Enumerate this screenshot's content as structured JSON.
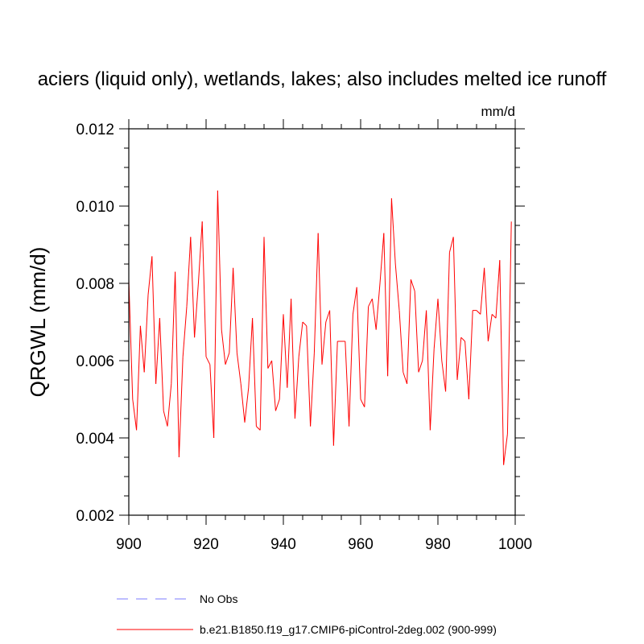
{
  "chart_data": {
    "type": "line",
    "title": "aciers (liquid only), wetlands, lakes; also includes melted ice runoff",
    "units": "mm/d",
    "ylabel": "QRGWL  (mm/d)",
    "xlabel": "",
    "xlim": [
      900,
      1000
    ],
    "ylim": [
      0.002,
      0.012
    ],
    "x_ticks": [
      900,
      920,
      940,
      960,
      980,
      1000
    ],
    "x_tick_labels": [
      "900",
      "920",
      "940",
      "960",
      "980",
      "1000"
    ],
    "y_ticks": [
      0.002,
      0.004,
      0.006,
      0.008,
      0.01,
      0.012
    ],
    "y_tick_labels": [
      "0.002",
      "0.004",
      "0.006",
      "0.008",
      "0.010",
      "0.012"
    ],
    "grid": false,
    "legend": [
      {
        "label": "No Obs",
        "color": "#7b7bff",
        "style": "dashed"
      },
      {
        "label": "b.e21.B1850.f19_g17.CMIP6-piControl-2deg.002 (900-999)",
        "color": "#ff0000",
        "style": "solid"
      }
    ],
    "series": [
      {
        "name": "b.e21.B1850.f19_g17.CMIP6-piControl-2deg.002 (900-999)",
        "color": "#ff0000",
        "x_start": 900,
        "values": [
          0.0081,
          0.005,
          0.0042,
          0.0069,
          0.0057,
          0.0077,
          0.0087,
          0.0054,
          0.0071,
          0.0047,
          0.0043,
          0.0054,
          0.0083,
          0.0035,
          0.0061,
          0.0074,
          0.0092,
          0.0066,
          0.008,
          0.0096,
          0.0061,
          0.0059,
          0.004,
          0.0104,
          0.0068,
          0.0059,
          0.0062,
          0.0084,
          0.0062,
          0.0054,
          0.0044,
          0.0053,
          0.0071,
          0.0043,
          0.0042,
          0.0092,
          0.0058,
          0.006,
          0.0047,
          0.005,
          0.0072,
          0.0053,
          0.0076,
          0.0045,
          0.0061,
          0.007,
          0.0069,
          0.0043,
          0.0062,
          0.0093,
          0.0059,
          0.007,
          0.0073,
          0.0038,
          0.0065,
          0.0065,
          0.0065,
          0.0043,
          0.0072,
          0.0079,
          0.005,
          0.0048,
          0.0074,
          0.0076,
          0.0068,
          0.008,
          0.0093,
          0.0056,
          0.0102,
          0.0085,
          0.0073,
          0.0057,
          0.0054,
          0.0081,
          0.0078,
          0.0057,
          0.006,
          0.0073,
          0.0042,
          0.0063,
          0.0076,
          0.006,
          0.0052,
          0.0088,
          0.0092,
          0.0055,
          0.0066,
          0.0065,
          0.005,
          0.0073,
          0.0073,
          0.0072,
          0.0084,
          0.0065,
          0.0072,
          0.0071,
          0.0086,
          0.0033,
          0.0041,
          0.0096
        ]
      }
    ]
  }
}
